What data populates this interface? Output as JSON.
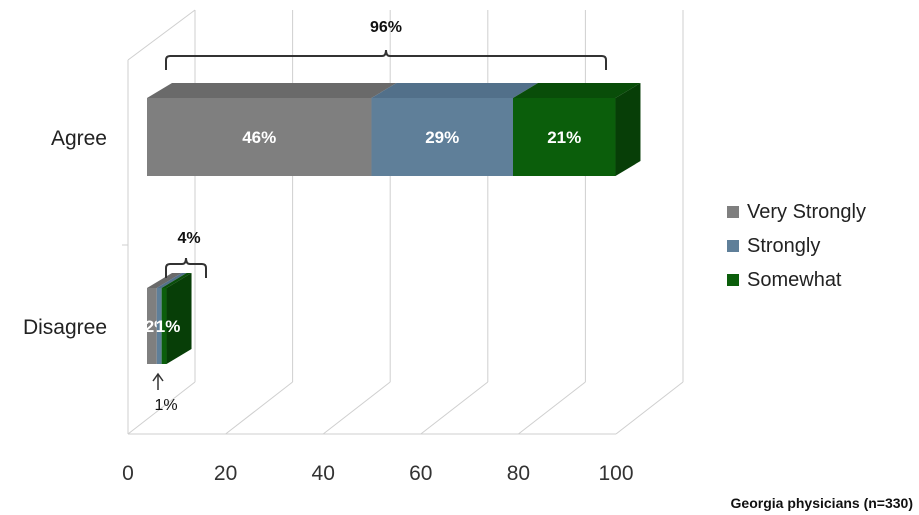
{
  "chart_data": {
    "type": "bar",
    "orientation": "horizontal",
    "stacked": true,
    "style": "3d",
    "categories": [
      "Agree",
      "Disagree"
    ],
    "series": [
      {
        "name": "Very Strongly",
        "color": "#7f7f7f",
        "side_color": "#5e5e5e",
        "top_color": "#6a6a6a",
        "values": [
          46,
          2
        ],
        "labels": [
          "46%",
          "2%"
        ]
      },
      {
        "name": "Strongly",
        "color": "#5f7f99",
        "side_color": "#465f73",
        "top_color": "#52708a",
        "values": [
          29,
          1
        ],
        "labels": [
          "29%",
          ""
        ]
      },
      {
        "name": "Somewhat",
        "color": "#0b5e0b",
        "side_color": "#073e07",
        "top_color": "#094d09",
        "values": [
          21,
          1
        ],
        "labels": [
          "21%",
          "1%"
        ]
      }
    ],
    "totals": [
      {
        "category": "Agree",
        "label": "96%"
      },
      {
        "category": "Disagree",
        "label": "4%"
      }
    ],
    "extra_annotations": [
      {
        "category": "Disagree",
        "series": "Strongly",
        "label": "1%"
      }
    ],
    "xlim": [
      0,
      100
    ],
    "xticks": [
      0,
      20,
      40,
      60,
      80,
      100
    ],
    "grid": true,
    "legend": "right"
  },
  "footnote": "Georgia physicians (n=330)"
}
